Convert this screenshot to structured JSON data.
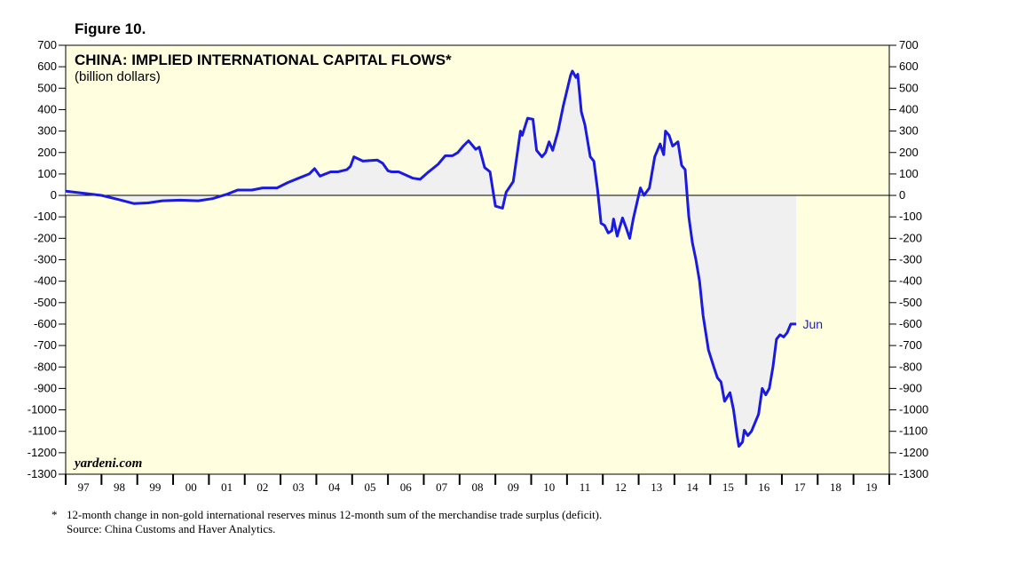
{
  "figure_label": "Figure 10.",
  "watermark": "yardeni.com",
  "footnote": {
    "marker": "*",
    "note": "12-month change in non-gold international reserves minus 12-month sum of the merchandise trade surplus (deficit).",
    "source": "Source: China Customs and Haver Analytics."
  },
  "colors": {
    "line": "#1a1ae0",
    "fill": "#f0f0f0",
    "plot_bg": "#ffffe0"
  },
  "chart_data": {
    "type": "area",
    "title": "CHINA: IMPLIED INTERNATIONAL CAPITAL FLOWS*",
    "subtitle": "(billion dollars)",
    "ylim": [
      -1300,
      700
    ],
    "yticks": [
      700,
      600,
      500,
      400,
      300,
      200,
      100,
      0,
      -100,
      -200,
      -300,
      -400,
      -500,
      -600,
      -700,
      -800,
      -900,
      -1000,
      -1100,
      -1200,
      -1300
    ],
    "xlim": [
      1997,
      2020
    ],
    "x_categories": [
      "97",
      "98",
      "99",
      "00",
      "01",
      "02",
      "03",
      "04",
      "05",
      "06",
      "07",
      "08",
      "09",
      "10",
      "11",
      "12",
      "13",
      "14",
      "15",
      "16",
      "17",
      "18",
      "19"
    ],
    "grid": false,
    "annotation": {
      "text": "Jun",
      "x": 2017.46,
      "y": -600
    },
    "series": [
      {
        "values": [
          [
            1997.0,
            20
          ],
          [
            1997.5,
            10
          ],
          [
            1998.0,
            0
          ],
          [
            1998.5,
            -20
          ],
          [
            1998.9,
            -38
          ],
          [
            1999.3,
            -35
          ],
          [
            1999.7,
            -25
          ],
          [
            2000.2,
            -22
          ],
          [
            2000.7,
            -25
          ],
          [
            2001.1,
            -15
          ],
          [
            2001.5,
            5
          ],
          [
            2001.8,
            25
          ],
          [
            2002.2,
            25
          ],
          [
            2002.5,
            35
          ],
          [
            2002.9,
            35
          ],
          [
            2003.2,
            60
          ],
          [
            2003.5,
            80
          ],
          [
            2003.8,
            100
          ],
          [
            2003.95,
            125
          ],
          [
            2004.1,
            90
          ],
          [
            2004.4,
            110
          ],
          [
            2004.6,
            110
          ],
          [
            2004.85,
            120
          ],
          [
            2004.95,
            135
          ],
          [
            2005.05,
            180
          ],
          [
            2005.3,
            160
          ],
          [
            2005.7,
            165
          ],
          [
            2005.85,
            150
          ],
          [
            2006.0,
            115
          ],
          [
            2006.1,
            110
          ],
          [
            2006.3,
            110
          ],
          [
            2006.5,
            95
          ],
          [
            2006.7,
            80
          ],
          [
            2006.9,
            75
          ],
          [
            2007.1,
            105
          ],
          [
            2007.4,
            145
          ],
          [
            2007.6,
            185
          ],
          [
            2007.8,
            185
          ],
          [
            2007.95,
            200
          ],
          [
            2008.1,
            230
          ],
          [
            2008.25,
            255
          ],
          [
            2008.45,
            215
          ],
          [
            2008.55,
            225
          ],
          [
            2008.7,
            130
          ],
          [
            2008.85,
            110
          ],
          [
            2009.0,
            -50
          ],
          [
            2009.2,
            -60
          ],
          [
            2009.3,
            15
          ],
          [
            2009.5,
            65
          ],
          [
            2009.7,
            300
          ],
          [
            2009.75,
            280
          ],
          [
            2009.9,
            360
          ],
          [
            2010.05,
            355
          ],
          [
            2010.15,
            210
          ],
          [
            2010.3,
            180
          ],
          [
            2010.4,
            200
          ],
          [
            2010.5,
            250
          ],
          [
            2010.6,
            210
          ],
          [
            2010.75,
            300
          ],
          [
            2010.9,
            420
          ],
          [
            2011.1,
            560
          ],
          [
            2011.15,
            580
          ],
          [
            2011.25,
            550
          ],
          [
            2011.3,
            565
          ],
          [
            2011.4,
            390
          ],
          [
            2011.5,
            330
          ],
          [
            2011.65,
            180
          ],
          [
            2011.75,
            160
          ],
          [
            2011.85,
            30
          ],
          [
            2011.95,
            -130
          ],
          [
            2012.05,
            -140
          ],
          [
            2012.15,
            -175
          ],
          [
            2012.25,
            -165
          ],
          [
            2012.3,
            -110
          ],
          [
            2012.4,
            -190
          ],
          [
            2012.55,
            -105
          ],
          [
            2012.65,
            -150
          ],
          [
            2012.75,
            -200
          ],
          [
            2012.85,
            -110
          ],
          [
            2013.0,
            0
          ],
          [
            2013.05,
            35
          ],
          [
            2013.15,
            0
          ],
          [
            2013.3,
            35
          ],
          [
            2013.45,
            180
          ],
          [
            2013.6,
            240
          ],
          [
            2013.7,
            190
          ],
          [
            2013.75,
            300
          ],
          [
            2013.85,
            280
          ],
          [
            2013.95,
            230
          ],
          [
            2014.1,
            250
          ],
          [
            2014.2,
            140
          ],
          [
            2014.3,
            120
          ],
          [
            2014.4,
            -100
          ],
          [
            2014.5,
            -220
          ],
          [
            2014.6,
            -300
          ],
          [
            2014.7,
            -400
          ],
          [
            2014.8,
            -560
          ],
          [
            2014.95,
            -720
          ],
          [
            2015.1,
            -800
          ],
          [
            2015.2,
            -850
          ],
          [
            2015.3,
            -870
          ],
          [
            2015.4,
            -960
          ],
          [
            2015.55,
            -920
          ],
          [
            2015.65,
            -1000
          ],
          [
            2015.75,
            -1120
          ],
          [
            2015.8,
            -1170
          ],
          [
            2015.9,
            -1150
          ],
          [
            2015.95,
            -1095
          ],
          [
            2016.05,
            -1120
          ],
          [
            2016.15,
            -1100
          ],
          [
            2016.35,
            -1020
          ],
          [
            2016.45,
            -900
          ],
          [
            2016.55,
            -930
          ],
          [
            2016.65,
            -900
          ],
          [
            2016.75,
            -800
          ],
          [
            2016.85,
            -670
          ],
          [
            2016.95,
            -650
          ],
          [
            2017.05,
            -660
          ],
          [
            2017.15,
            -640
          ],
          [
            2017.25,
            -600
          ],
          [
            2017.4,
            -600
          ]
        ]
      }
    ]
  }
}
